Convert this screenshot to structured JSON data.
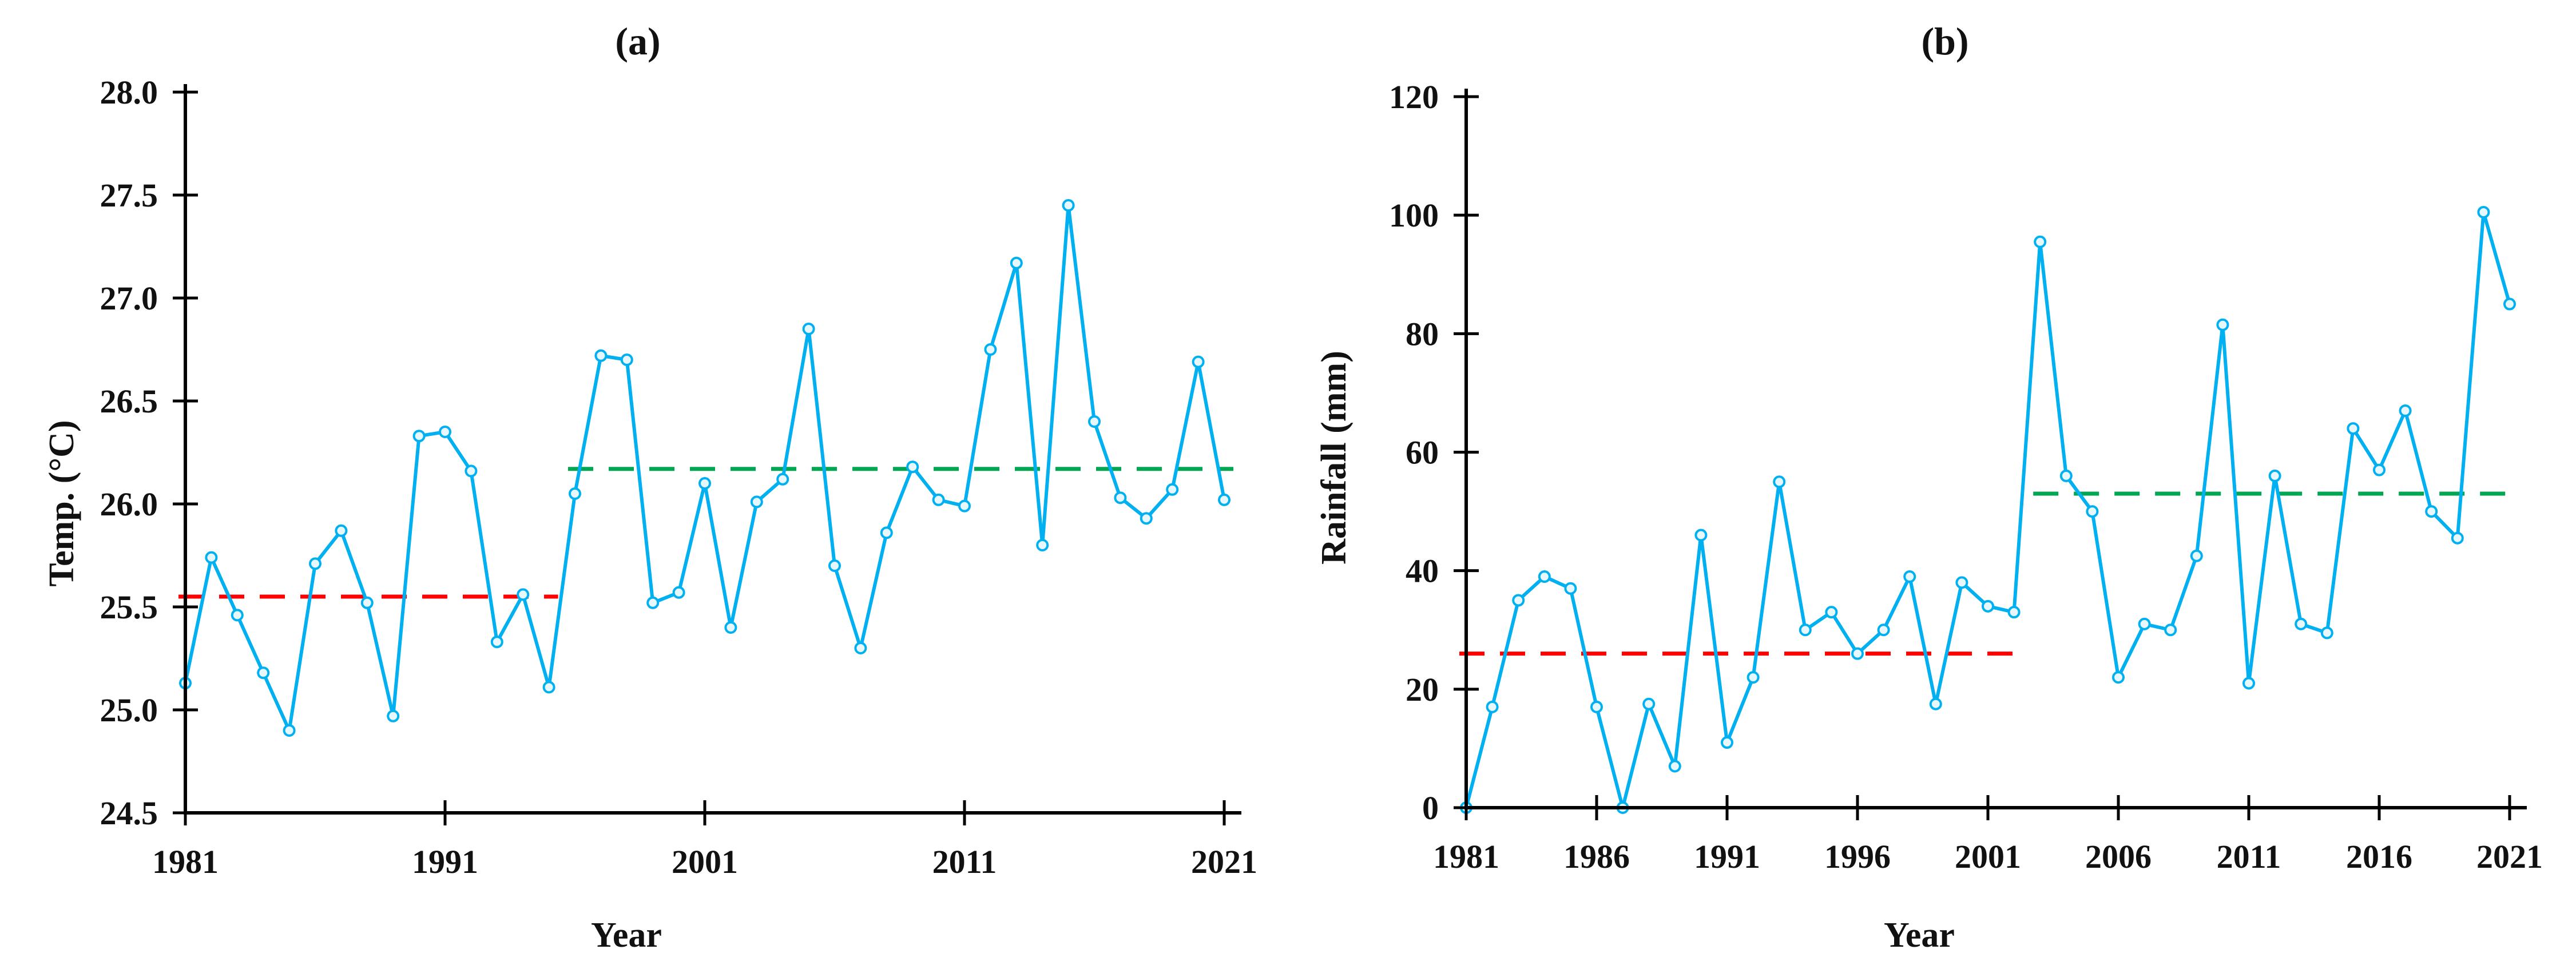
{
  "figure": {
    "background": "#FFFFFF",
    "panel_a_title": "(a)",
    "panel_b_title": "(b)",
    "x_axis_title": "Year",
    "panel_a_y_axis_title": "Temp. (°C)",
    "panel_b_y_axis_title": "Rainfall (mm)",
    "series_color": "#00B0F0",
    "first_period_mean_color": "#FF0000",
    "second_period_mean_color": "#00A651"
  },
  "chart_data": [
    {
      "id": "a",
      "type": "line",
      "title": "(a)",
      "xlabel": "Year",
      "ylabel": "Temp. (°C)",
      "ylim": [
        24.5,
        28.0
      ],
      "ytick_step": 0.5,
      "ytick_decimals": 1,
      "yticks": [
        24.5,
        25.0,
        25.5,
        26.0,
        26.5,
        27.0,
        27.5,
        28.0
      ],
      "xticks": [
        1981,
        1991,
        2001,
        2011,
        2021
      ],
      "grid": false,
      "legend": "none",
      "x": [
        1981,
        1982,
        1983,
        1984,
        1985,
        1986,
        1987,
        1988,
        1989,
        1990,
        1991,
        1992,
        1993,
        1994,
        1995,
        1996,
        1997,
        1998,
        1999,
        2000,
        2001,
        2002,
        2003,
        2004,
        2005,
        2006,
        2007,
        2008,
        2009,
        2010,
        2011,
        2012,
        2013,
        2014,
        2015,
        2016,
        2017,
        2018,
        2019,
        2020,
        2021
      ],
      "series": [
        {
          "name": "annual-mean-temperature",
          "color": "#00B0F0",
          "values": [
            25.13,
            25.74,
            25.46,
            25.18,
            24.9,
            25.71,
            25.87,
            25.52,
            24.97,
            26.33,
            26.35,
            26.16,
            25.33,
            25.56,
            25.11,
            26.05,
            26.72,
            26.7,
            25.52,
            25.57,
            26.1,
            25.4,
            26.01,
            26.12,
            26.85,
            25.7,
            25.3,
            25.86,
            26.18,
            26.02,
            25.99,
            26.75,
            27.17,
            25.8,
            27.45,
            26.4,
            26.03,
            25.93,
            26.07,
            26.69,
            26.02
          ]
        }
      ],
      "mean_lines": [
        {
          "name": "mean-1981-1995",
          "value": 25.55,
          "x_start": 1981,
          "x_end": 1995,
          "color": "#FF0000"
        },
        {
          "name": "mean-1996-2021",
          "value": 26.17,
          "x_start": 1996,
          "x_end": 2021,
          "color": "#00A651"
        }
      ]
    },
    {
      "id": "b",
      "type": "line",
      "title": "(b)",
      "xlabel": "Year",
      "ylabel": "Rainfall (mm)",
      "ylim": [
        0,
        120
      ],
      "ytick_step": 20,
      "ytick_decimals": 0,
      "yticks": [
        0,
        20,
        40,
        60,
        80,
        100,
        120
      ],
      "xticks": [
        1981,
        1986,
        1991,
        1996,
        2001,
        2006,
        2011,
        2016,
        2021
      ],
      "grid": false,
      "legend": "none",
      "x": [
        1981,
        1982,
        1983,
        1984,
        1985,
        1986,
        1987,
        1988,
        1989,
        1990,
        1991,
        1992,
        1993,
        1994,
        1995,
        1996,
        1997,
        1998,
        1999,
        2000,
        2001,
        2002,
        2003,
        2004,
        2005,
        2006,
        2007,
        2008,
        2009,
        2010,
        2011,
        2012,
        2013,
        2014,
        2015,
        2016,
        2017,
        2018,
        2019,
        2020,
        2021
      ],
      "series": [
        {
          "name": "annual-rainfall",
          "color": "#00B0F0",
          "values": [
            0,
            17,
            35,
            39,
            37,
            17,
            0,
            17.5,
            7,
            46,
            11,
            22,
            55,
            30,
            33,
            26,
            30,
            39,
            17.5,
            38,
            34,
            33,
            95.5,
            56,
            50,
            22,
            31,
            30,
            42.5,
            81.5,
            21,
            56,
            31,
            29.5,
            64,
            57,
            67,
            50,
            45.5,
            100.5,
            85
          ]
        }
      ],
      "mean_lines": [
        {
          "name": "mean-1981-2002",
          "value": 26,
          "x_start": 1981,
          "x_end": 2002,
          "color": "#FF0000"
        },
        {
          "name": "mean-2003-2021",
          "value": 53,
          "x_start": 2003,
          "x_end": 2021,
          "color": "#00A651"
        }
      ]
    }
  ]
}
